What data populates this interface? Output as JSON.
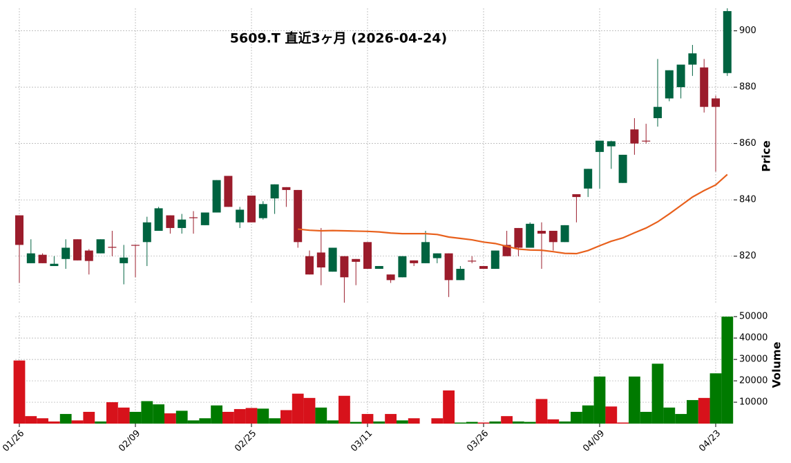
{
  "chart_data": {
    "type": "candlestick",
    "title": "5609.T 直近3ヶ月 (2026-04-24)",
    "y_label": "Price",
    "y2_label": "Volume",
    "categories": [
      "01/26",
      null,
      null,
      null,
      null,
      null,
      null,
      null,
      null,
      null,
      "02/09",
      null,
      null,
      null,
      null,
      null,
      null,
      null,
      null,
      null,
      "02/25",
      null,
      null,
      null,
      null,
      null,
      null,
      null,
      null,
      null,
      "03/11",
      null,
      null,
      null,
      null,
      null,
      null,
      null,
      null,
      null,
      "03/26",
      null,
      null,
      null,
      null,
      null,
      null,
      null,
      null,
      null,
      "04/09",
      null,
      null,
      null,
      null,
      null,
      null,
      null,
      null,
      null,
      "04/23",
      null
    ],
    "open": [
      834.5,
      817.5,
      820.5,
      816.5,
      819,
      826,
      822,
      821,
      823.3,
      817.5,
      824,
      825,
      829,
      834.5,
      830,
      833.8,
      831,
      835.5,
      848.5,
      832,
      841.5,
      833.5,
      840.5,
      844.5,
      843.5,
      820,
      821.3,
      814.5,
      820,
      819,
      825,
      815.5,
      813.5,
      812.5,
      818.5,
      817.5,
      819.3,
      821,
      811.5,
      818.4,
      816.5,
      815.5,
      824,
      830,
      823,
      829,
      829,
      825,
      842,
      844,
      857,
      859,
      846,
      865,
      861,
      869,
      876,
      880,
      888,
      887,
      876,
      885
    ],
    "high": [
      834.5,
      826,
      821,
      820,
      826,
      826,
      822.5,
      826,
      829,
      824,
      824,
      834,
      837.5,
      834.5,
      835,
      836,
      835.5,
      847,
      848.5,
      837.5,
      841.5,
      839.5,
      845.5,
      844.5,
      843.5,
      822,
      830,
      823,
      820,
      819,
      825,
      816.5,
      813.5,
      820,
      818.5,
      829,
      821,
      821,
      816.5,
      820,
      816.5,
      822,
      829,
      830,
      832,
      832,
      829,
      831,
      842,
      851,
      861,
      861,
      856,
      869,
      867,
      890,
      886,
      888,
      895,
      890,
      877,
      908
    ],
    "low": [
      810.5,
      817.5,
      817.5,
      816.5,
      815.5,
      818.5,
      813.5,
      821,
      820,
      810,
      812.5,
      816.5,
      829,
      828,
      828,
      828,
      831,
      835.5,
      837.5,
      830,
      832,
      833,
      835,
      837.5,
      823,
      813.5,
      809.7,
      814.5,
      803.5,
      809.7,
      815.5,
      815.5,
      810.5,
      812.5,
      816.5,
      817.5,
      817.5,
      805.5,
      811.5,
      817.5,
      815.5,
      815.5,
      820,
      820,
      823,
      815.5,
      822,
      825,
      832,
      841,
      844,
      851,
      846,
      856,
      860,
      866,
      875,
      876,
      884,
      871,
      850,
      884
    ],
    "close": [
      824,
      821,
      817.5,
      817.3,
      823,
      818.5,
      818.3,
      826,
      823,
      819.5,
      823.8,
      832,
      837,
      830,
      833,
      833.5,
      835.5,
      847,
      837.5,
      836.5,
      832,
      838.5,
      845.5,
      843.5,
      825,
      813.5,
      816,
      823,
      812.5,
      818,
      815.5,
      816.5,
      811.5,
      820,
      817.5,
      825,
      821,
      811.5,
      815.5,
      818.2,
      815.5,
      822,
      820,
      823,
      831.5,
      828,
      825,
      831,
      841,
      851,
      861,
      860.8,
      856,
      860,
      860.8,
      873,
      886,
      888,
      892,
      873,
      873,
      907
    ],
    "up_color": "#006340",
    "down_color": "#9b1c2b",
    "ylim": [
      803,
      908
    ],
    "yticks": [
      820,
      840,
      860,
      880,
      900
    ],
    "ma": {
      "color": "#e8601c",
      "values": [
        null,
        null,
        null,
        null,
        null,
        null,
        null,
        null,
        null,
        null,
        null,
        null,
        null,
        null,
        null,
        null,
        null,
        null,
        null,
        null,
        null,
        null,
        null,
        null,
        829.6,
        829.2,
        829,
        829.1,
        829,
        828.9,
        828.8,
        828.6,
        828.2,
        828,
        828,
        828,
        827.7,
        826.8,
        826.3,
        825.8,
        825,
        824.5,
        823.5,
        822.5,
        822.2,
        822.1,
        821.6,
        821,
        820.9,
        822,
        823.7,
        825.3,
        826.5,
        828.3,
        830,
        832.2,
        835,
        838,
        841,
        843.3,
        845.3,
        849
      ]
    },
    "volume": {
      "values": [
        29500,
        3500,
        2500,
        1000,
        4500,
        1500,
        5500,
        1000,
        10000,
        7500,
        5500,
        10500,
        9000,
        4800,
        6000,
        1500,
        2500,
        8500,
        5500,
        6800,
        7300,
        7000,
        2500,
        6300,
        14000,
        12000,
        7500,
        1500,
        13000,
        800,
        4500,
        1000,
        4500,
        1500,
        2500,
        0,
        2500,
        15500,
        500,
        800,
        500,
        1000,
        3500,
        1000,
        800,
        11500,
        2000,
        1000,
        5500,
        8500,
        22000,
        8000,
        500,
        22000,
        5500,
        28000,
        7500,
        4500,
        11000,
        12000,
        23500,
        50000
      ],
      "up_color": "#007a00",
      "down_color": "#d7121b"
    },
    "y2lim": [
      0,
      52000
    ],
    "y2ticks": [
      10000,
      20000,
      30000,
      40000,
      50000
    ],
    "grid": true
  }
}
